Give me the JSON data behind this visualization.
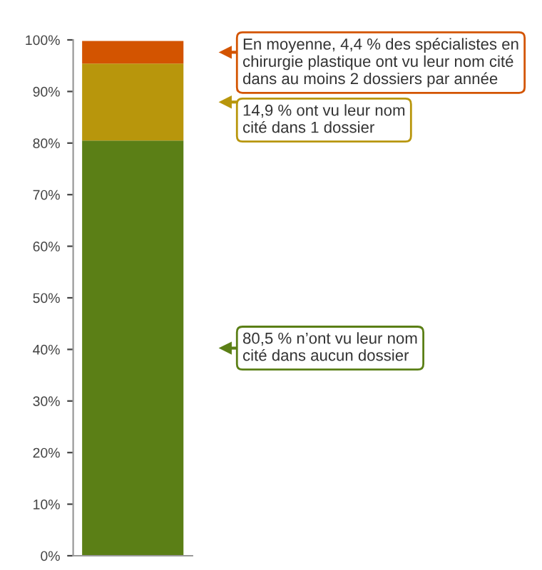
{
  "chart_data": {
    "type": "bar",
    "stacked": true,
    "categories": [
      null
    ],
    "series": [
      {
        "color": "#5b7f16",
        "values": [
          80.5
        ]
      },
      {
        "color": "#b8960c",
        "values": [
          14.9
        ]
      },
      {
        "color": "#d35400",
        "values": [
          4.4
        ]
      }
    ],
    "ylim": [
      0,
      100
    ],
    "yticks": [
      {
        "value": 0,
        "label": "0%"
      },
      {
        "value": 10,
        "label": "10%"
      },
      {
        "value": 20,
        "label": "20%"
      },
      {
        "value": 30,
        "label": "30%"
      },
      {
        "value": 40,
        "label": "40%"
      },
      {
        "value": 50,
        "label": "50%"
      },
      {
        "value": 60,
        "label": "60%"
      },
      {
        "value": 70,
        "label": "70%"
      },
      {
        "value": 80,
        "label": "80%"
      },
      {
        "value": 90,
        "label": "90%"
      },
      {
        "value": 100,
        "label": "100%"
      }
    ],
    "grid": false,
    "legend": false,
    "annotations": [
      "80,5 % n’ont vu leur nom\ncité dans aucun dossier",
      "14,9 % ont vu leur nom\ncité dans 1 dossier",
      "En moyenne, 4,4 % des spécialistes en\nchirurgie plastique ont vu leur nom cité\ndans au moins 2 dossiers par année"
    ]
  }
}
